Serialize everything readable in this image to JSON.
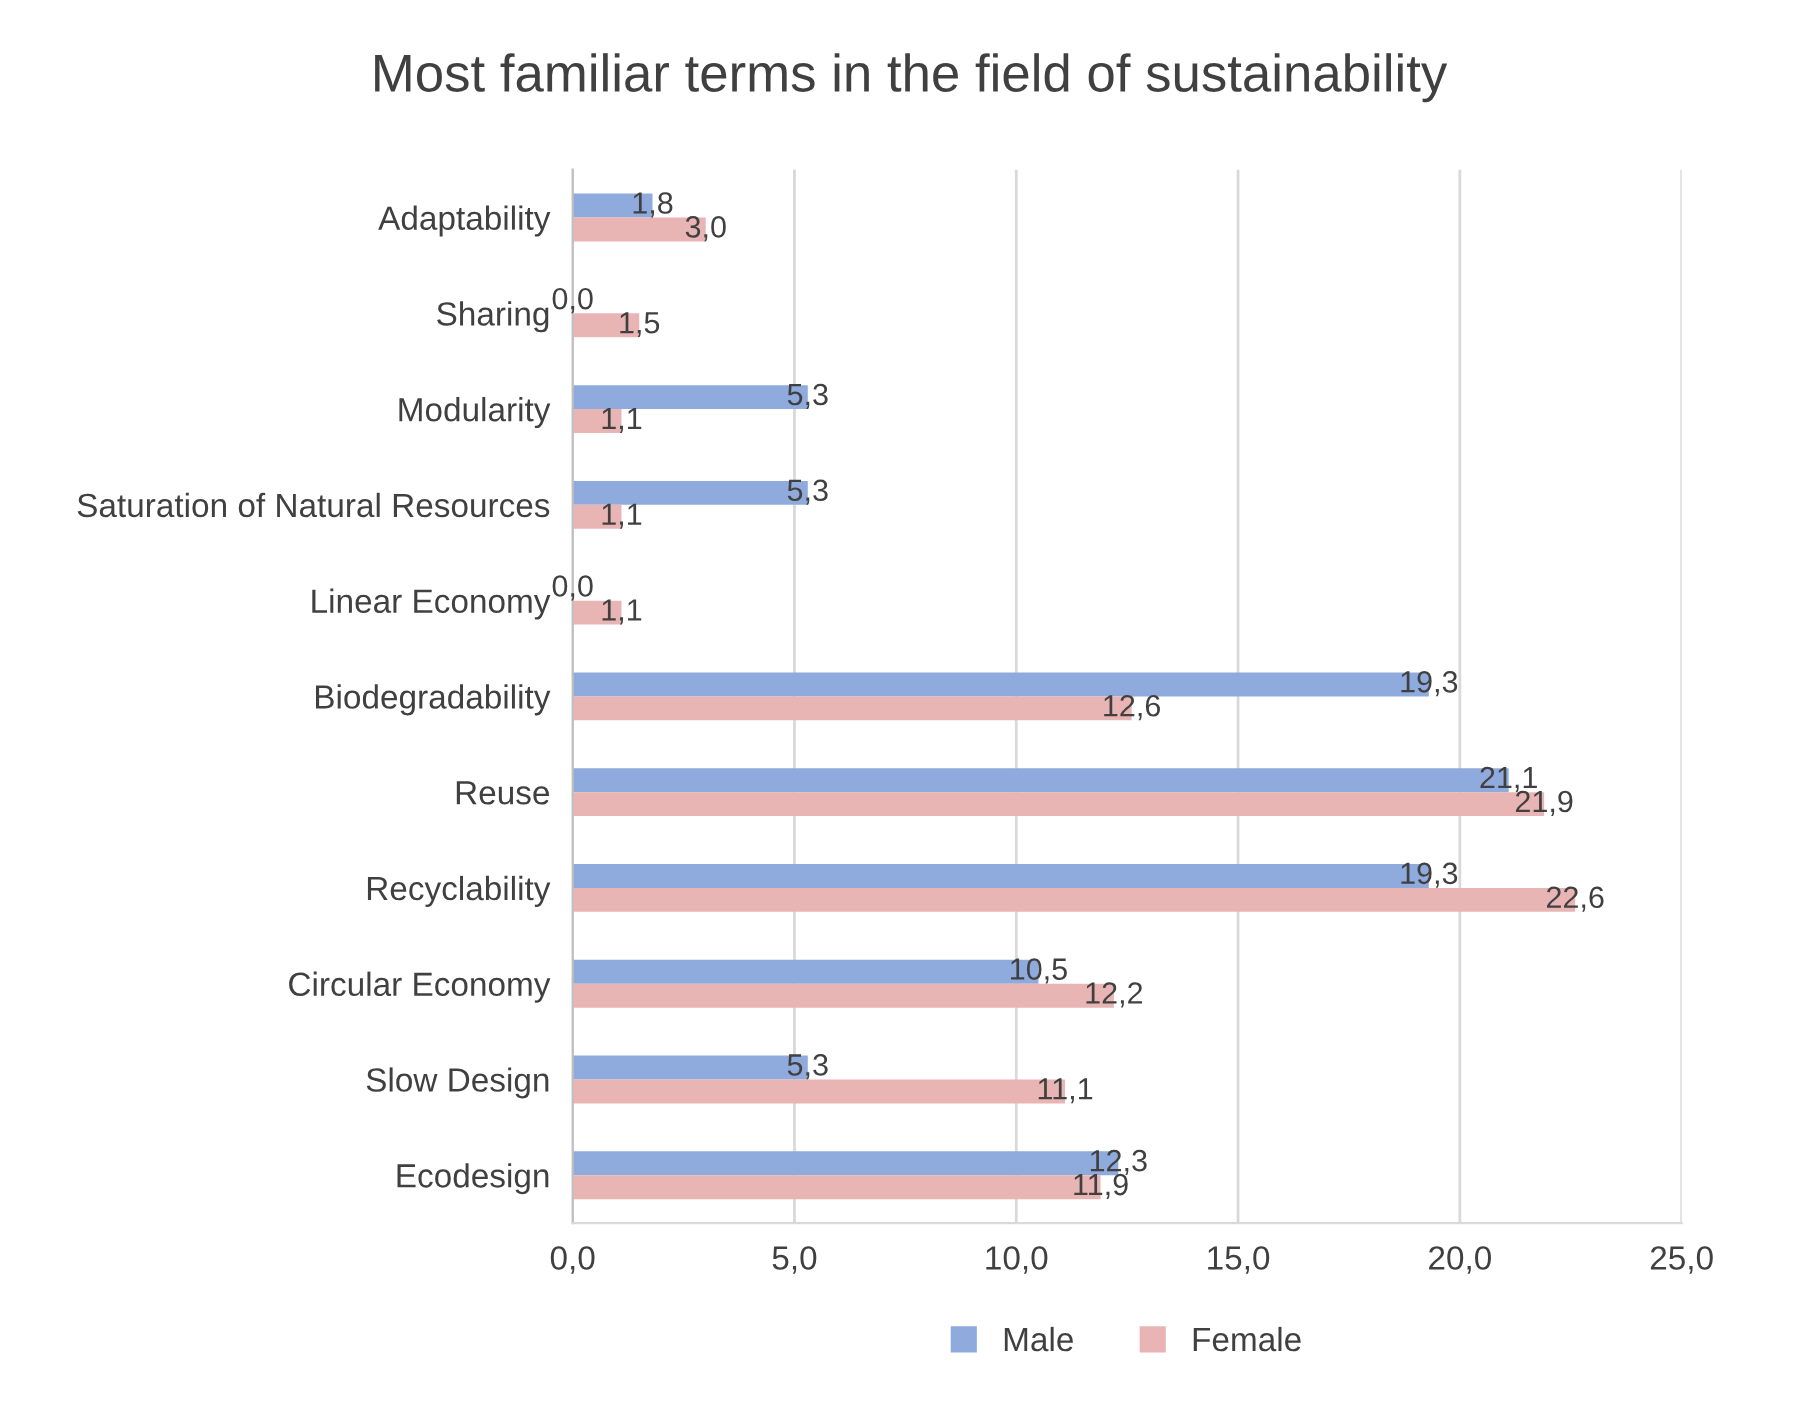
{
  "chart_data": {
    "type": "bar",
    "orientation": "horizontal",
    "title": "Most familiar terms in the field of sustainability",
    "categories": [
      "Adaptability",
      "Sharing",
      "Modularity",
      "Saturation of Natural Resources",
      "Linear Economy",
      "Biodegradability",
      "Reuse",
      "Recyclability",
      "Circular Economy",
      "Slow Design",
      "Ecodesign"
    ],
    "series": [
      {
        "name": "Male",
        "color": "#8faadc",
        "values": [
          1.8,
          0.0,
          5.3,
          5.3,
          0.0,
          19.3,
          21.1,
          19.3,
          10.5,
          5.3,
          12.3
        ],
        "value_labels": [
          "1,8",
          "0,0",
          "5,3",
          "5,3",
          "0,0",
          "19,3",
          "21,1",
          "19,3",
          "10,5",
          "5,3",
          "12,3"
        ]
      },
      {
        "name": "Female",
        "color": "#e8b4b4",
        "values": [
          3.0,
          1.5,
          1.1,
          1.1,
          1.1,
          12.6,
          21.9,
          22.6,
          12.2,
          11.1,
          11.9
        ],
        "value_labels": [
          "3,0",
          "1,5",
          "1,1",
          "1,1",
          "1,1",
          "12,6",
          "21,9",
          "22,6",
          "12,2",
          "11,1",
          "11,9"
        ]
      }
    ],
    "xlim": [
      0,
      25
    ],
    "xticks": [
      {
        "value": 0,
        "label": "0,0"
      },
      {
        "value": 5,
        "label": "5,0"
      },
      {
        "value": 10,
        "label": "10,0"
      },
      {
        "value": 15,
        "label": "15,0"
      },
      {
        "value": 20,
        "label": "20,0"
      },
      {
        "value": 25,
        "label": "25,0"
      }
    ],
    "grid": "x",
    "legend": "bottom"
  }
}
